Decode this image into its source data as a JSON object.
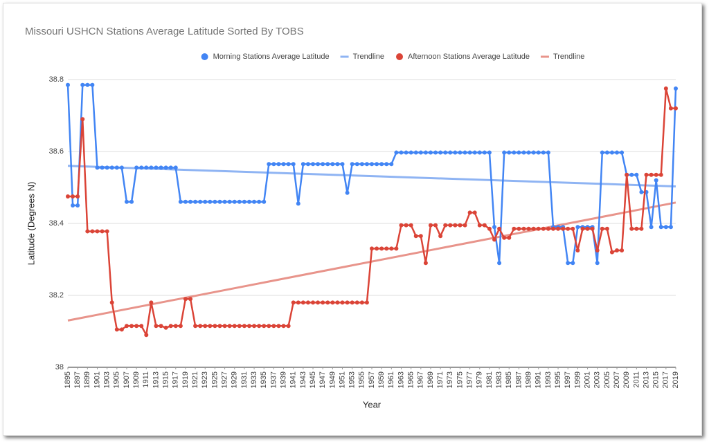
{
  "chart_data": {
    "type": "line",
    "title": "Missouri USHCN Stations Average Latitude Sorted By TOBS",
    "xlabel": "Year",
    "ylabel": "Latitude (Degrees N)",
    "grid": true,
    "legend": "top",
    "ylim": [
      38,
      38.8
    ],
    "yticks": [
      38,
      38.2,
      38.4,
      38.6,
      38.8
    ],
    "xlim": [
      1895,
      2019
    ],
    "xticks": [
      1895,
      1897,
      1899,
      1901,
      1903,
      1905,
      1907,
      1909,
      1911,
      1913,
      1915,
      1917,
      1919,
      1921,
      1923,
      1925,
      1927,
      1929,
      1931,
      1933,
      1935,
      1937,
      1939,
      1941,
      1943,
      1945,
      1947,
      1949,
      1951,
      1953,
      1955,
      1957,
      1959,
      1961,
      1963,
      1965,
      1967,
      1969,
      1971,
      1973,
      1975,
      1977,
      1979,
      1981,
      1983,
      1985,
      1987,
      1989,
      1991,
      1993,
      1995,
      1997,
      1999,
      2001,
      2003,
      2005,
      2007,
      2009,
      2011,
      2013,
      2015,
      2017,
      2019
    ],
    "x": [
      1895,
      1896,
      1897,
      1898,
      1899,
      1900,
      1901,
      1902,
      1903,
      1904,
      1905,
      1906,
      1907,
      1908,
      1909,
      1910,
      1911,
      1912,
      1913,
      1914,
      1915,
      1916,
      1917,
      1918,
      1919,
      1920,
      1921,
      1922,
      1923,
      1924,
      1925,
      1926,
      1927,
      1928,
      1929,
      1930,
      1931,
      1932,
      1933,
      1934,
      1935,
      1936,
      1937,
      1938,
      1939,
      1940,
      1941,
      1942,
      1943,
      1944,
      1945,
      1946,
      1947,
      1948,
      1949,
      1950,
      1951,
      1952,
      1953,
      1954,
      1955,
      1956,
      1957,
      1958,
      1959,
      1960,
      1961,
      1962,
      1963,
      1964,
      1965,
      1966,
      1967,
      1968,
      1969,
      1970,
      1971,
      1972,
      1973,
      1974,
      1975,
      1976,
      1977,
      1978,
      1979,
      1980,
      1981,
      1982,
      1983,
      1984,
      1985,
      1986,
      1987,
      1988,
      1989,
      1990,
      1991,
      1992,
      1993,
      1994,
      1995,
      1996,
      1997,
      1998,
      1999,
      2000,
      2001,
      2002,
      2003,
      2004,
      2005,
      2006,
      2007,
      2008,
      2009,
      2010,
      2011,
      2012,
      2013,
      2014,
      2015,
      2016,
      2017,
      2018,
      2019
    ],
    "series": [
      {
        "name": "Morning Stations Average Latitude",
        "color": "#4285f4",
        "values": [
          38.785,
          38.45,
          38.45,
          38.785,
          38.785,
          38.785,
          38.555,
          38.555,
          38.555,
          38.555,
          38.555,
          38.555,
          38.46,
          38.46,
          38.555,
          38.555,
          38.555,
          38.555,
          38.555,
          38.555,
          38.555,
          38.555,
          38.555,
          38.46,
          38.46,
          38.46,
          38.46,
          38.46,
          38.46,
          38.46,
          38.46,
          38.46,
          38.46,
          38.46,
          38.46,
          38.46,
          38.46,
          38.46,
          38.46,
          38.46,
          38.46,
          38.565,
          38.565,
          38.565,
          38.565,
          38.565,
          38.565,
          38.455,
          38.565,
          38.565,
          38.565,
          38.565,
          38.565,
          38.565,
          38.565,
          38.565,
          38.565,
          38.485,
          38.565,
          38.565,
          38.565,
          38.565,
          38.565,
          38.565,
          38.565,
          38.565,
          38.565,
          38.597,
          38.597,
          38.597,
          38.597,
          38.597,
          38.597,
          38.597,
          38.597,
          38.597,
          38.597,
          38.597,
          38.597,
          38.597,
          38.597,
          38.597,
          38.597,
          38.597,
          38.597,
          38.597,
          38.597,
          38.39,
          38.29,
          38.597,
          38.597,
          38.597,
          38.597,
          38.597,
          38.597,
          38.597,
          38.597,
          38.597,
          38.597,
          38.39,
          38.39,
          38.39,
          38.29,
          38.29,
          38.39,
          38.39,
          38.39,
          38.39,
          38.29,
          38.597,
          38.597,
          38.597,
          38.597,
          38.597,
          38.535,
          38.535,
          38.535,
          38.487,
          38.487,
          38.39,
          38.52,
          38.39,
          38.39,
          38.39,
          38.775
        ]
      },
      {
        "name": "Trendline",
        "color": "#8fb4f3",
        "x": [
          1895,
          2019
        ],
        "values": [
          38.56,
          38.503
        ]
      },
      {
        "name": "Afternoon Stations Average Latitude",
        "color": "#db4437",
        "values": [
          38.475,
          38.475,
          38.475,
          38.69,
          38.378,
          38.378,
          38.378,
          38.378,
          38.378,
          38.18,
          38.105,
          38.105,
          38.115,
          38.115,
          38.115,
          38.115,
          38.09,
          38.18,
          38.115,
          38.115,
          38.11,
          38.115,
          38.115,
          38.115,
          38.19,
          38.19,
          38.115,
          38.115,
          38.115,
          38.115,
          38.115,
          38.115,
          38.115,
          38.115,
          38.115,
          38.115,
          38.115,
          38.115,
          38.115,
          38.115,
          38.115,
          38.115,
          38.115,
          38.115,
          38.115,
          38.115,
          38.18,
          38.18,
          38.18,
          38.18,
          38.18,
          38.18,
          38.18,
          38.18,
          38.18,
          38.18,
          38.18,
          38.18,
          38.18,
          38.18,
          38.18,
          38.18,
          38.33,
          38.33,
          38.33,
          38.33,
          38.33,
          38.33,
          38.395,
          38.395,
          38.395,
          38.365,
          38.365,
          38.29,
          38.395,
          38.395,
          38.365,
          38.395,
          38.395,
          38.395,
          38.395,
          38.395,
          38.43,
          38.43,
          38.395,
          38.395,
          38.385,
          38.355,
          38.385,
          38.36,
          38.36,
          38.385,
          38.385,
          38.385,
          38.385,
          38.385,
          38.385,
          38.385,
          38.385,
          38.385,
          38.385,
          38.385,
          38.385,
          38.385,
          38.325,
          38.385,
          38.385,
          38.385,
          38.325,
          38.385,
          38.385,
          38.32,
          38.325,
          38.325,
          38.535,
          38.385,
          38.385,
          38.385,
          38.535,
          38.535,
          38.535,
          38.535,
          38.775,
          38.72,
          38.72
        ]
      },
      {
        "name": "Trendline",
        "color": "#e8948b",
        "x": [
          1895,
          2019
        ],
        "values": [
          38.13,
          38.458
        ]
      }
    ]
  }
}
